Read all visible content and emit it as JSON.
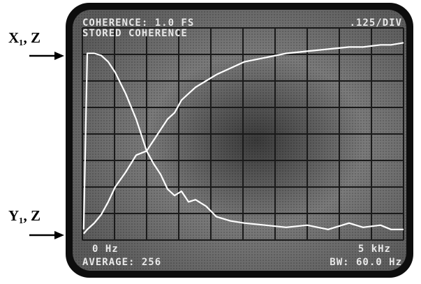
{
  "chart_data": {
    "type": "line",
    "title": "COHERENCE: 1.0 FS",
    "subtitle": "STORED COHERENCE",
    "scale_label": ".125/DIV",
    "start_label": "0 Hz",
    "stop_label": "5 kHz",
    "average_label": "AVERAGE: 256",
    "bandwidth_label": "BW: 60.0 Hz",
    "xlim": [
      0,
      5000
    ],
    "ylim": [
      0,
      1
    ],
    "x": [
      20,
      76,
      185,
      293,
      402,
      511,
      674,
      837,
      1000,
      1109,
      1217,
      1326,
      1435,
      1543,
      1652,
      1761,
      1924,
      2087,
      2304,
      2522,
      2848,
      3174,
      3500,
      3826,
      4152,
      4370,
      4641,
      4804,
      5000
    ],
    "series": [
      {
        "name": "X₁, Z",
        "color": "#ffffff",
        "values": [
          0.05,
          0.88,
          0.88,
          0.87,
          0.84,
          0.79,
          0.69,
          0.57,
          0.42,
          0.36,
          0.31,
          0.24,
          0.21,
          0.23,
          0.18,
          0.19,
          0.16,
          0.11,
          0.09,
          0.08,
          0.07,
          0.06,
          0.07,
          0.05,
          0.08,
          0.06,
          0.07,
          0.05,
          0.05
        ]
      },
      {
        "name": "Y₁, Z",
        "color": "#ffffff",
        "values": [
          0.03,
          0.05,
          0.08,
          0.12,
          0.18,
          0.25,
          0.32,
          0.4,
          0.42,
          0.47,
          0.52,
          0.57,
          0.6,
          0.66,
          0.69,
          0.72,
          0.75,
          0.78,
          0.81,
          0.84,
          0.86,
          0.88,
          0.89,
          0.9,
          0.91,
          0.91,
          0.92,
          0.92,
          0.93
        ]
      }
    ]
  }
}
